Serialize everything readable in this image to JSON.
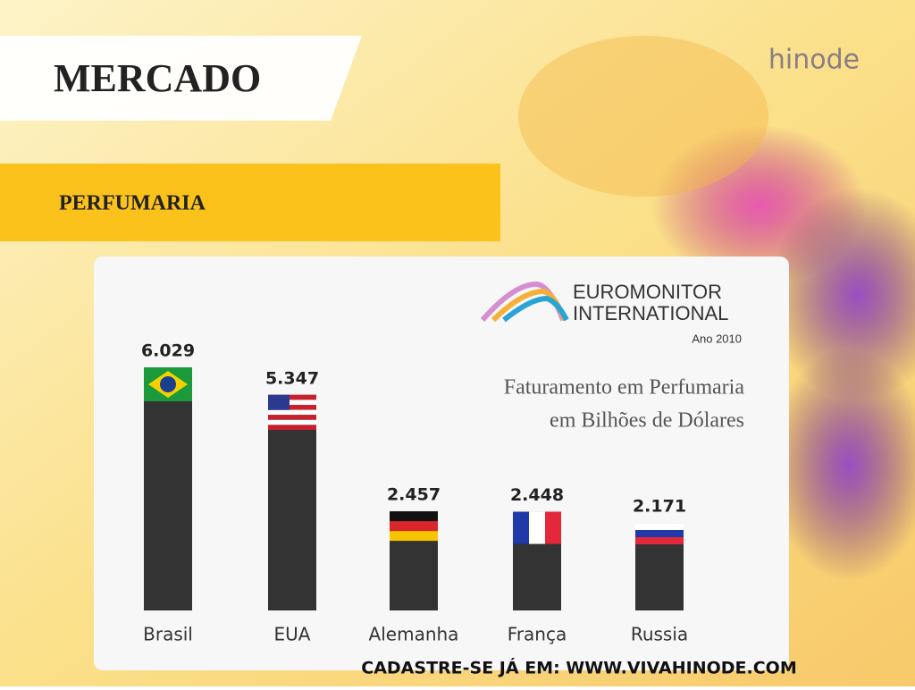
{
  "header": {
    "title": "MERCADO",
    "subtitle": "PERFUMARIA",
    "brand": "hinode"
  },
  "footer": "CADASTRE-SE JÁ EM: WWW.VIVAHINODE.COM",
  "chart_data": {
    "type": "bar",
    "title": [
      "Faturamento em Perfumaria",
      "em Bilhões de Dólares"
    ],
    "source": [
      "EUROMONITOR",
      "INTERNATIONAL"
    ],
    "year": "Ano 2010",
    "categories": [
      "Brasil",
      "EUA",
      "Alemanha",
      "França",
      "Russia"
    ],
    "values": [
      6.029,
      5.347,
      2.457,
      2.448,
      2.171
    ],
    "color": "#333333"
  }
}
